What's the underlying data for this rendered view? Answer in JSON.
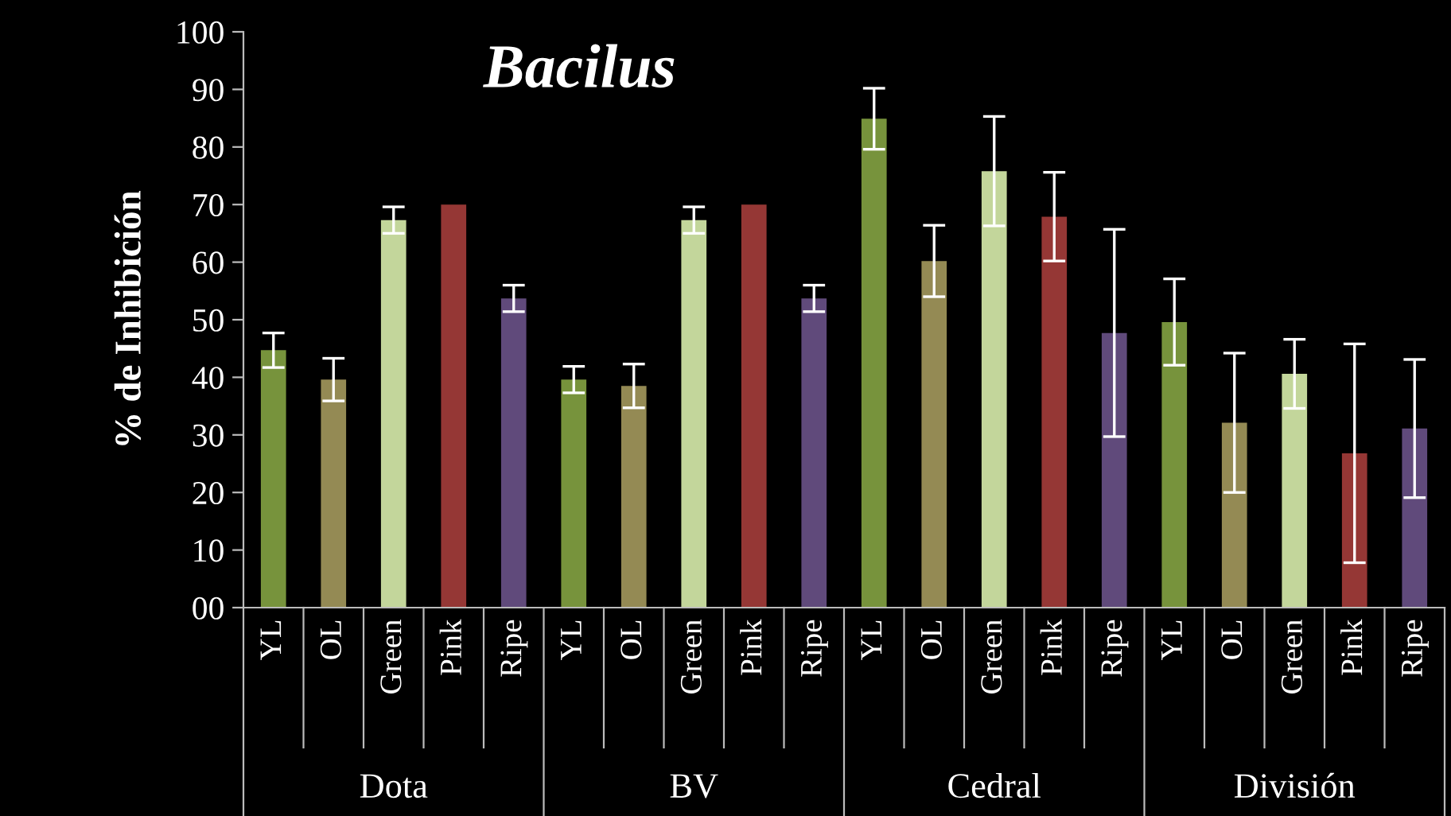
{
  "chart_data": {
    "type": "bar",
    "title": "Bacilus",
    "ylabel": "% de Inhibición",
    "categories": [
      "YL",
      "OL",
      "Green",
      "Pink",
      "Ripe",
      "YL",
      "OL",
      "Green",
      "Pink",
      "Ripe",
      "YL",
      "OL",
      "Green",
      "Pink",
      "Ripe",
      "YL",
      "OL",
      "Green",
      "Pink",
      "Ripe"
    ],
    "values": [
      44.7,
      39.6,
      67.3,
      70,
      53.7,
      39.6,
      38.5,
      67.3,
      70,
      53.7,
      84.9,
      60.2,
      75.8,
      67.9,
      47.7,
      49.6,
      32.1,
      40.6,
      26.8,
      31.1
    ],
    "errors": [
      3,
      3.7,
      2.3,
      null,
      2.3,
      2.3,
      3.8,
      2.3,
      null,
      2.3,
      5.3,
      6.2,
      9.5,
      7.7,
      18,
      7.5,
      12.1,
      6,
      19,
      12
    ],
    "colors": [
      "#77933c",
      "#948a54",
      "#c3d69b",
      "#953735",
      "#604a7b",
      "#77933c",
      "#948a54",
      "#c3d69b",
      "#953735",
      "#604a7b",
      "#77933c",
      "#948a54",
      "#c3d69b",
      "#953735",
      "#604a7b",
      "#77933c",
      "#948a54",
      "#c3d69b",
      "#953735",
      "#604a7b"
    ],
    "annotations": [
      "Dota",
      "BV",
      "Cedral",
      "División"
    ],
    "ylim": [
      0,
      100
    ],
    "yticks": [
      {
        "value": 0,
        "label": "00"
      },
      10,
      20,
      30,
      40,
      50,
      60,
      70,
      80,
      90,
      100
    ],
    "grid": false,
    "legend": false
  }
}
